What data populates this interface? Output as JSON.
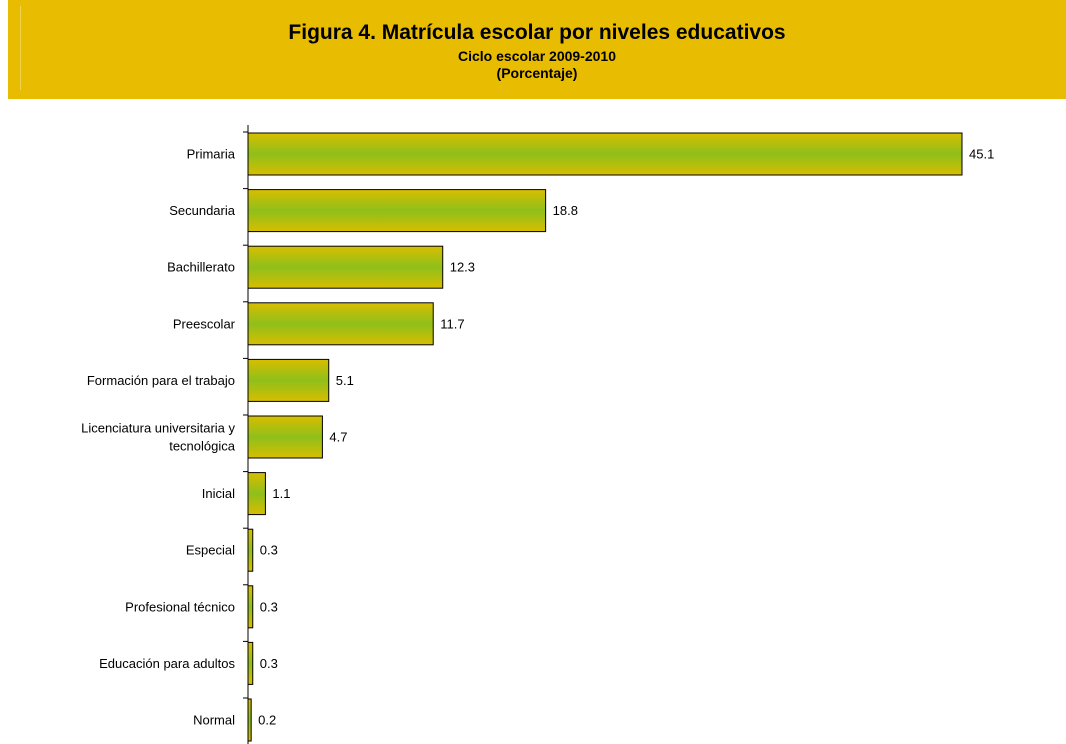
{
  "header": {
    "title": "Figura 4. Matrícula escolar por niveles educativos",
    "subtitle": "Ciclo escolar 2009-2010",
    "unit": "(Porcentaje)"
  },
  "colors": {
    "banner": "#e8bc00",
    "bar_outer": "#d8be00",
    "bar_center": "#8fbf1a",
    "bar_border": "#000000"
  },
  "chart_data": {
    "type": "bar",
    "orientation": "horizontal",
    "title": "Figura 4. Matrícula escolar por niveles educativos",
    "subtitle": "Ciclo escolar 2009-2010",
    "ylabel": "(Porcentaje)",
    "categories": [
      [
        "Primaria"
      ],
      [
        "Secundaria"
      ],
      [
        "Bachillerato"
      ],
      [
        "Preescolar"
      ],
      [
        "Formación para el trabajo"
      ],
      [
        "Licenciatura universitaria y",
        "tecnológica"
      ],
      [
        "Inicial"
      ],
      [
        "Especial"
      ],
      [
        "Profesional técnico"
      ],
      [
        "Educación para adultos"
      ],
      [
        "Normal"
      ]
    ],
    "values": [
      45.1,
      18.8,
      12.3,
      11.7,
      5.1,
      4.7,
      1.1,
      0.3,
      0.3,
      0.3,
      0.2
    ],
    "value_labels": [
      "45.1",
      "18.8",
      "12.3",
      "11.7",
      "5.1",
      "4.7",
      "1.1",
      "0.3",
      "0.3",
      "0.3",
      "0.2"
    ],
    "xlim": [
      0,
      45.1
    ],
    "legend": "none",
    "grid": false
  }
}
